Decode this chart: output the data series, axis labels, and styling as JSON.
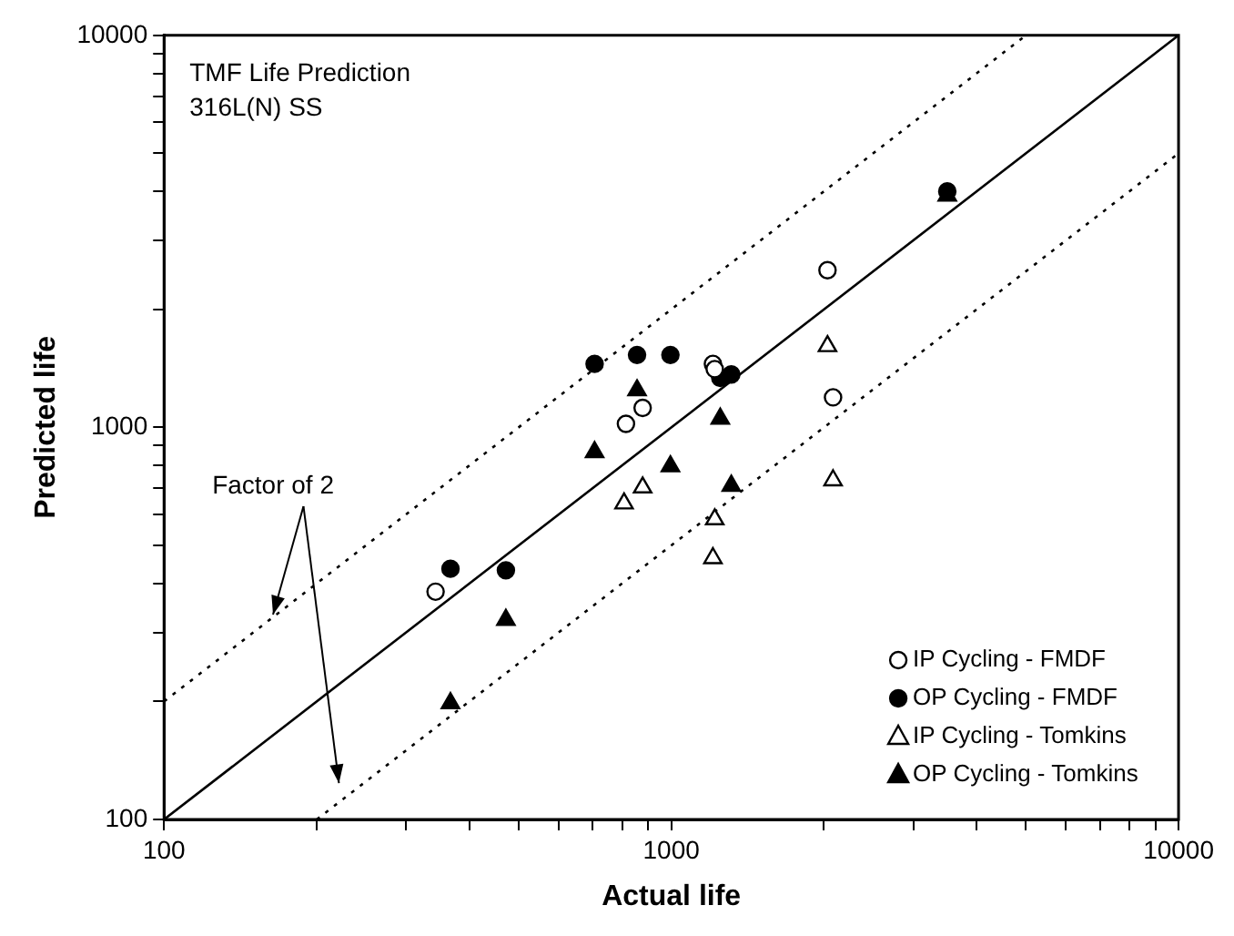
{
  "chart_data": {
    "type": "scatter",
    "title": "TMF Life Prediction",
    "subtitle": "316L(N) SS",
    "xlabel": "Actual life",
    "ylabel": "Predicted life",
    "annotations": [
      {
        "text": "Factor of 2",
        "x": 164,
        "y": 333
      }
    ],
    "log": "xy",
    "grid": false,
    "legend": "bottom right",
    "xlim": [
      100,
      10000
    ],
    "ylim": [
      100,
      10000
    ],
    "xticks": [
      100,
      {
        "value": 200,
        "label": null
      },
      {
        "value": 300,
        "label": null
      },
      {
        "value": 400,
        "label": null
      },
      {
        "value": 500,
        "label": null
      },
      {
        "value": 600,
        "label": null
      },
      {
        "value": 700,
        "label": null
      },
      {
        "value": 800,
        "label": null
      },
      {
        "value": 900,
        "label": null
      },
      1000,
      {
        "value": 2000,
        "label": null
      },
      {
        "value": 3000,
        "label": null
      },
      {
        "value": 4000,
        "label": null
      },
      {
        "value": 5000,
        "label": null
      },
      {
        "value": 6000,
        "label": null
      },
      {
        "value": 7000,
        "label": null
      },
      {
        "value": 8000,
        "label": null
      },
      {
        "value": 9000,
        "label": null
      },
      10000
    ],
    "yticks": [
      100,
      {
        "value": 200,
        "label": null
      },
      {
        "value": 300,
        "label": null
      },
      {
        "value": 400,
        "label": null
      },
      {
        "value": 500,
        "label": null
      },
      {
        "value": 600,
        "label": null
      },
      {
        "value": 700,
        "label": null
      },
      {
        "value": 800,
        "label": null
      },
      {
        "value": 900,
        "label": null
      },
      1000,
      {
        "value": 2000,
        "label": null
      },
      {
        "value": 3000,
        "label": null
      },
      {
        "value": 4000,
        "label": null
      },
      {
        "value": 5000,
        "label": null
      },
      {
        "value": 6000,
        "label": null
      },
      {
        "value": 7000,
        "label": null
      },
      {
        "value": 8000,
        "label": null
      },
      {
        "value": 9000,
        "label": null
      },
      10000
    ],
    "series": [
      {
        "name": "IP Cycling - FMDF",
        "marker": "circle",
        "color": "#ffffff",
        "x": [
          343,
          814,
          878,
          1208,
          1218,
          2032,
          2084
        ],
        "values": [
          381,
          1021,
          1121,
          1452,
          1408,
          2518,
          1193
        ]
      },
      {
        "name": "OP Cycling - FMDF",
        "marker": "circle",
        "color": "#000000",
        "x": [
          367,
          472,
          706,
          856,
          996,
          1249,
          1313,
          3500
        ],
        "values": [
          436,
          432,
          1452,
          1530,
          1530,
          1337,
          1365,
          4000
        ]
      },
      {
        "name": "IP Cycling - Tomkins",
        "marker": "triangle",
        "color": "#ffffff",
        "x": [
          2032,
          2084,
          878,
          807,
          1218,
          1208
        ],
        "values": [
          1612,
          733,
          703,
          640,
          583,
          464
        ]
      },
      {
        "name": "OP Cycling - Tomkins",
        "marker": "triangle",
        "color": "#000000",
        "x": [
          856,
          1249,
          706,
          996,
          1313,
          472,
          367,
          3500
        ],
        "values": [
          1244,
          1053,
          865,
          796,
          710,
          323,
          198,
          3900
        ]
      },
      {
        "type": "line",
        "marker": "none",
        "line_style": "solid",
        "color": "#000000",
        "x": [
          100,
          10000
        ],
        "values": [
          100,
          10000
        ]
      },
      {
        "type": "line",
        "marker": "none",
        "line_style": "dotted",
        "color": "#000000",
        "x": [
          100,
          5000
        ],
        "values": [
          200,
          10000
        ]
      },
      {
        "type": "line",
        "marker": "none",
        "line_style": "dotted",
        "color": "#000000",
        "x": [
          200,
          10000
        ],
        "values": [
          100,
          5000
        ]
      }
    ]
  }
}
